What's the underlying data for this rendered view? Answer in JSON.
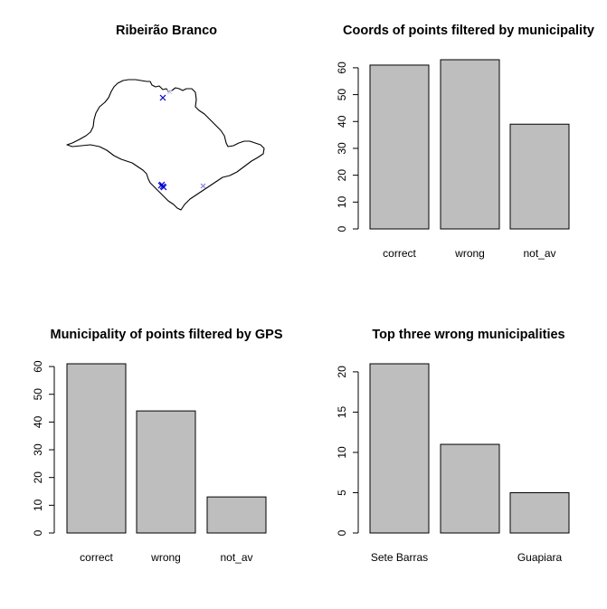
{
  "map_panel": {
    "title": "Ribeirão Branco"
  },
  "chart_data": [
    {
      "type": "bar",
      "title": "Coords of points filtered by municipality",
      "categories": [
        "correct",
        "wrong",
        "not_av"
      ],
      "values": [
        61,
        63,
        39
      ],
      "ylim": [
        0,
        63
      ],
      "yticks": [
        0,
        10,
        20,
        30,
        40,
        50,
        60
      ],
      "grid": false
    },
    {
      "type": "bar",
      "title": "Municipality of points filtered by GPS",
      "categories": [
        "correct",
        "wrong",
        "not_av"
      ],
      "values": [
        61,
        44,
        13
      ],
      "ylim": [
        0,
        61
      ],
      "yticks": [
        0,
        10,
        20,
        30,
        40,
        50,
        60
      ],
      "grid": false
    },
    {
      "type": "bar",
      "title": "Top three wrong municipalities",
      "categories": [
        "Sete Barras",
        "",
        "Guapiara"
      ],
      "values": [
        21,
        11,
        5
      ],
      "ylim": [
        0,
        21
      ],
      "yticks": [
        0,
        5,
        10,
        15,
        20
      ],
      "grid": false
    }
  ]
}
